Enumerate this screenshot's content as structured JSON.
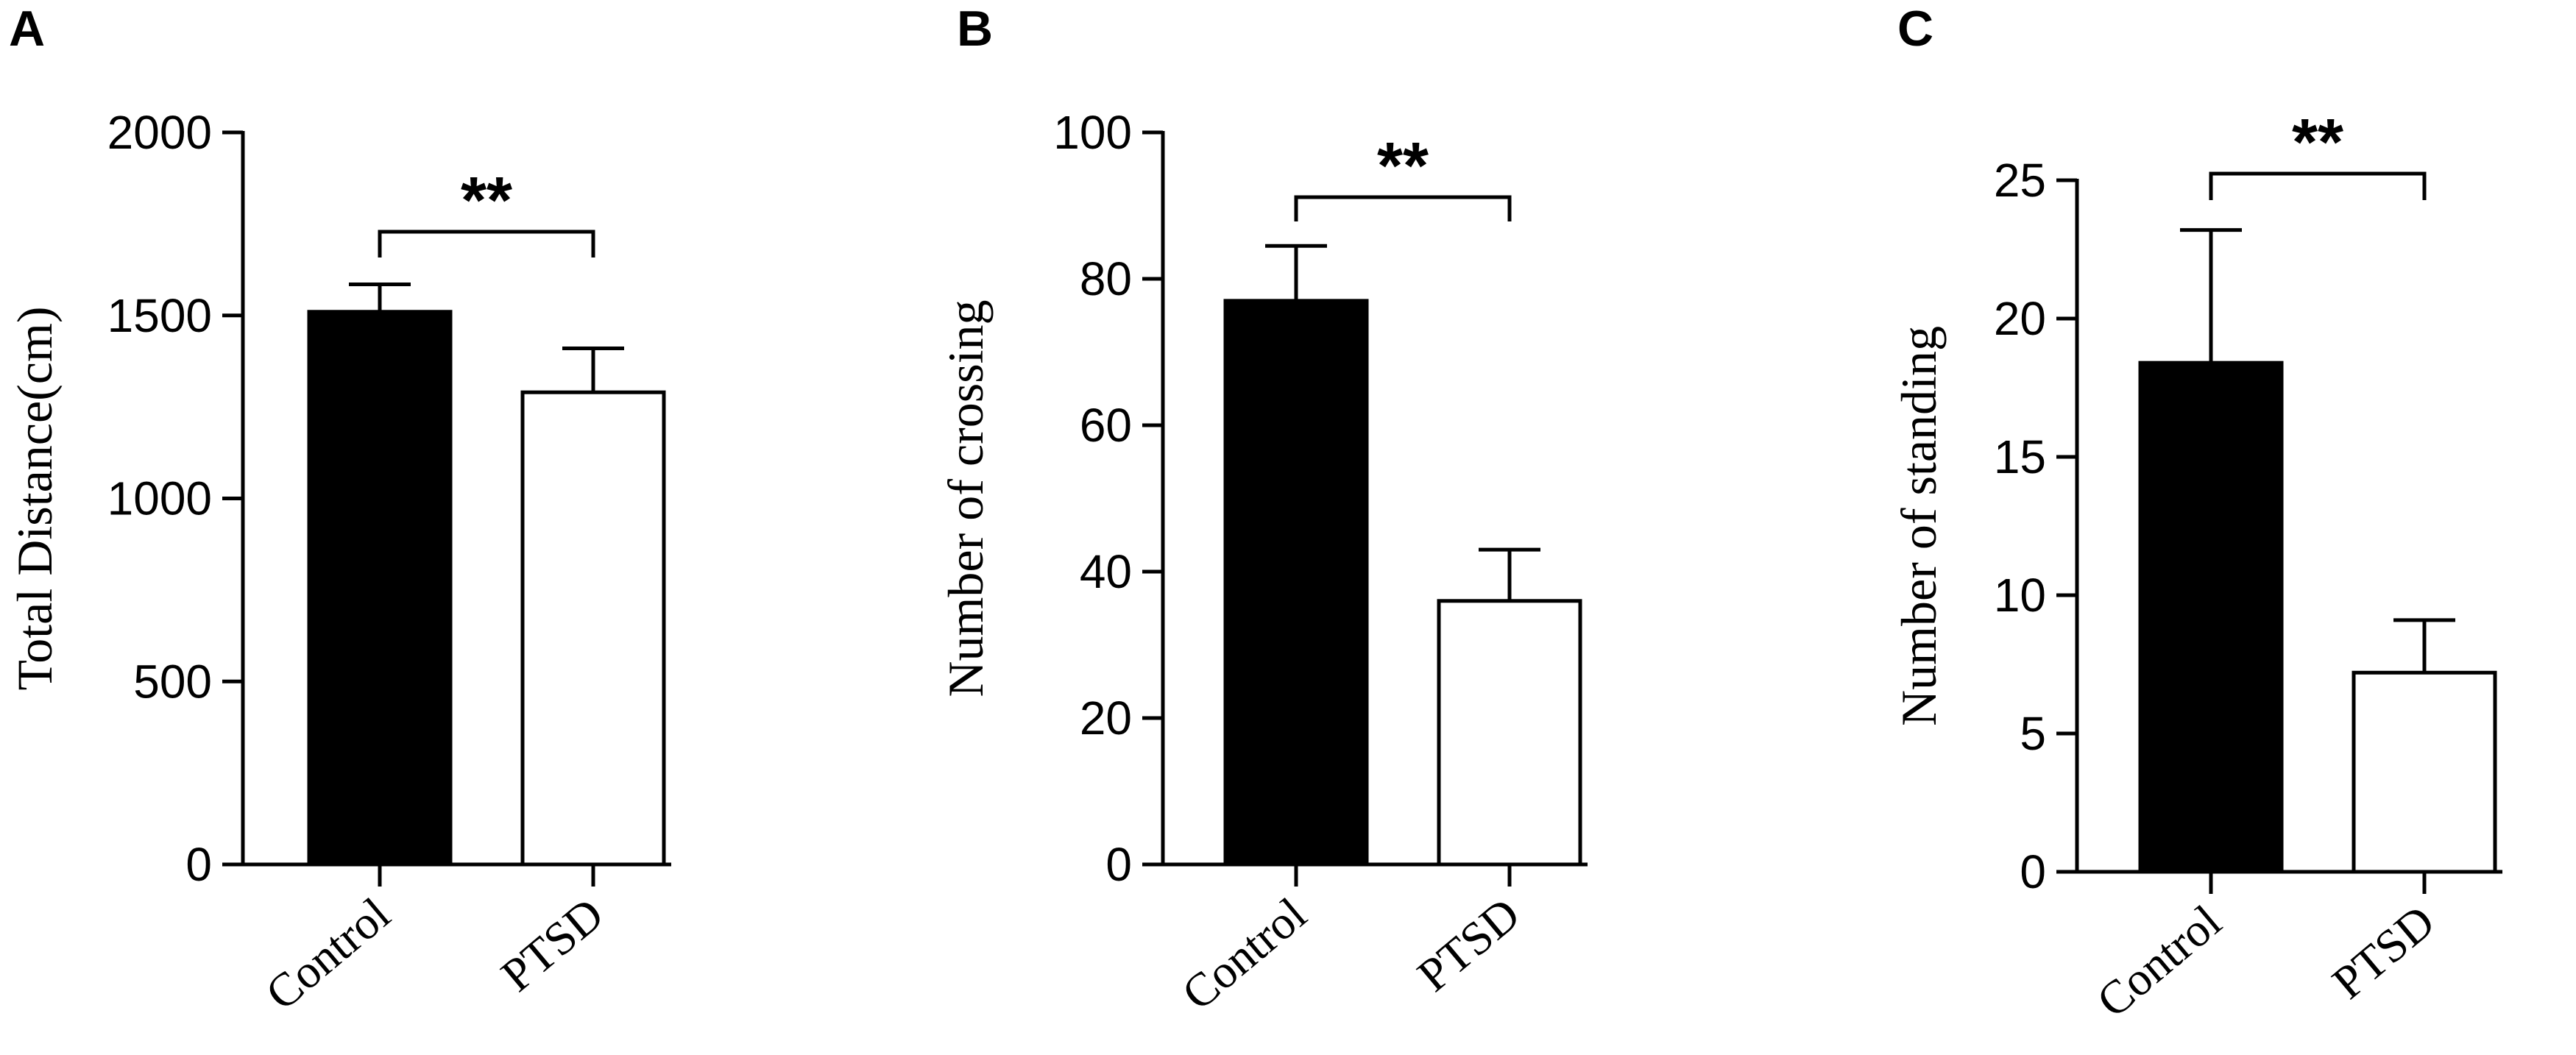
{
  "chart_data": [
    {
      "panel": "A",
      "type": "bar",
      "categories": [
        "Control",
        "PTSD"
      ],
      "values": [
        1510,
        1290
      ],
      "errors": [
        75,
        120
      ],
      "fills": [
        "#000000",
        "#ffffff"
      ],
      "ylabel": "Total Distance(cm)",
      "ylim": [
        0,
        2000
      ],
      "yticks": [
        0,
        500,
        1000,
        1500,
        2000
      ],
      "significance": "**"
    },
    {
      "panel": "B",
      "type": "bar",
      "categories": [
        "Control",
        "PTSD"
      ],
      "values": [
        77,
        36
      ],
      "errors": [
        7.5,
        7
      ],
      "fills": [
        "#000000",
        "#ffffff"
      ],
      "ylabel": "Number of crossing",
      "ylim": [
        0,
        100
      ],
      "yticks": [
        0,
        20,
        40,
        60,
        80,
        100
      ],
      "significance": "**"
    },
    {
      "panel": "C",
      "type": "bar",
      "categories": [
        "Control",
        "PTSD"
      ],
      "values": [
        18.4,
        7.2
      ],
      "errors": [
        4.8,
        1.9
      ],
      "fills": [
        "#000000",
        "#ffffff"
      ],
      "ylabel": "Number of standing",
      "ylim": [
        0,
        25
      ],
      "yticks": [
        0,
        5,
        10,
        15,
        20,
        25
      ],
      "significance": "**"
    }
  ]
}
